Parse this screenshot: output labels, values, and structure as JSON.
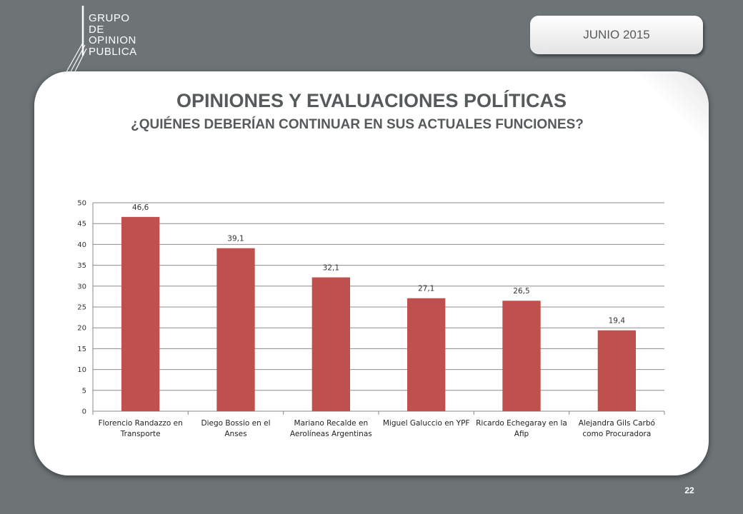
{
  "logo": {
    "lines": [
      "GRUPO",
      "DE",
      "OPINION",
      "PUBLICA"
    ]
  },
  "date_label": "JUNIO 2015",
  "title": "OPINIONES Y EVALUACIONES POLÍTICAS",
  "subtitle": "¿QUIÉNES DEBERÍAN CONTINUAR EN SUS ACTUALES FUNCIONES?",
  "page_number": "22",
  "colors": {
    "bar": "#c0504d",
    "background": "#6e7476",
    "text": "#555a5c"
  },
  "chart_data": {
    "type": "bar",
    "title": "",
    "xlabel": "",
    "ylabel": "",
    "ylim": [
      0,
      50
    ],
    "ytick_step": 5,
    "grid": true,
    "categories": [
      [
        "Florencio Randazzo en",
        "Transporte"
      ],
      [
        "Diego Bossio en el",
        "Anses"
      ],
      [
        "Mariano Recalde en",
        "Aerolíneas Argentinas"
      ],
      [
        "Miguel Galuccio en YPF"
      ],
      [
        "Ricardo Echegaray en la",
        "Afip"
      ],
      [
        "Alejandra Gils Carbó",
        "como Procuradora"
      ]
    ],
    "values": [
      46.6,
      39.1,
      32.1,
      27.1,
      26.5,
      19.4
    ],
    "data_labels": [
      "46,6",
      "39,1",
      "32,1",
      "27,1",
      "26,5",
      "19,4"
    ]
  }
}
